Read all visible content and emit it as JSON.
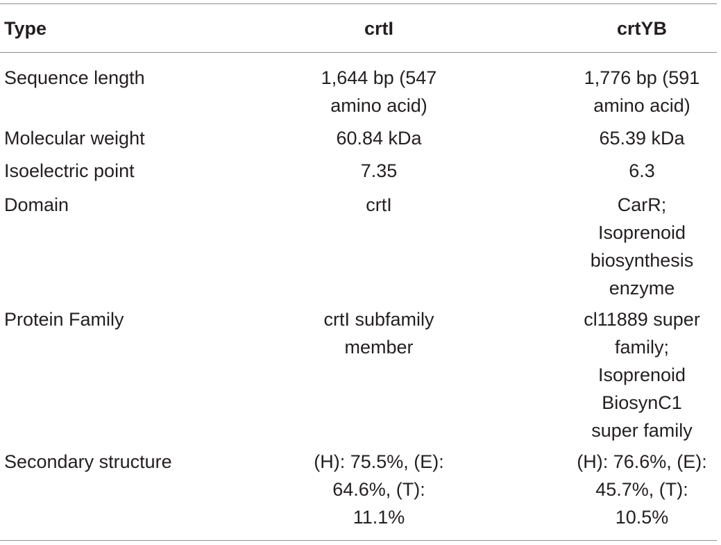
{
  "table": {
    "headers": [
      "Type",
      "crtI",
      "crtYB"
    ],
    "rows": [
      {
        "type": "Sequence length",
        "crtI": "1,644 bp (547\namino acid)",
        "crtYB": "1,776 bp (591\namino acid)"
      },
      {
        "type": "Molecular weight",
        "crtI": "60.84 kDa",
        "crtYB": "65.39 kDa"
      },
      {
        "type": "Isoelectric point",
        "crtI": "7.35",
        "crtYB": "6.3"
      },
      {
        "type": "Domain",
        "crtI": "crtI",
        "crtYB": "CarR;\nIsoprenoid\nbiosynthesis\nenzyme"
      },
      {
        "type": "Protein Family",
        "crtI": "crtI subfamily\nmember",
        "crtYB": "cl11889 super\nfamily;\nIsoprenoid\nBiosynC1\nsuper family"
      },
      {
        "type": "Secondary structure",
        "crtI": "(H): 75.5%, (E):\n64.6%, (T):\n11.1%",
        "crtYB": "(H): 76.6%, (E):\n45.7%, (T):\n10.5%"
      }
    ]
  }
}
